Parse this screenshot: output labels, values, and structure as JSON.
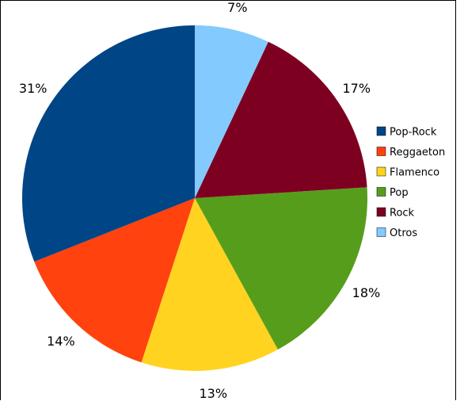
{
  "chart_data": {
    "type": "pie",
    "title": "",
    "start_angle_deg": 0,
    "direction": "counterclockwise",
    "legend_position": "right",
    "slices": [
      {
        "label": "Pop-Rock",
        "value": 31,
        "percent_label": "31%",
        "color": "#004586"
      },
      {
        "label": "Reggaeton",
        "value": 14,
        "percent_label": "14%",
        "color": "#ff420e"
      },
      {
        "label": "Flamenco",
        "value": 13,
        "percent_label": "13%",
        "color": "#ffd320"
      },
      {
        "label": "Pop",
        "value": 18,
        "percent_label": "18%",
        "color": "#579d1c"
      },
      {
        "label": "Rock",
        "value": 17,
        "percent_label": "17%",
        "color": "#7e0021"
      },
      {
        "label": "Otros",
        "value": 7,
        "percent_label": "7%",
        "color": "#83caff"
      }
    ]
  }
}
